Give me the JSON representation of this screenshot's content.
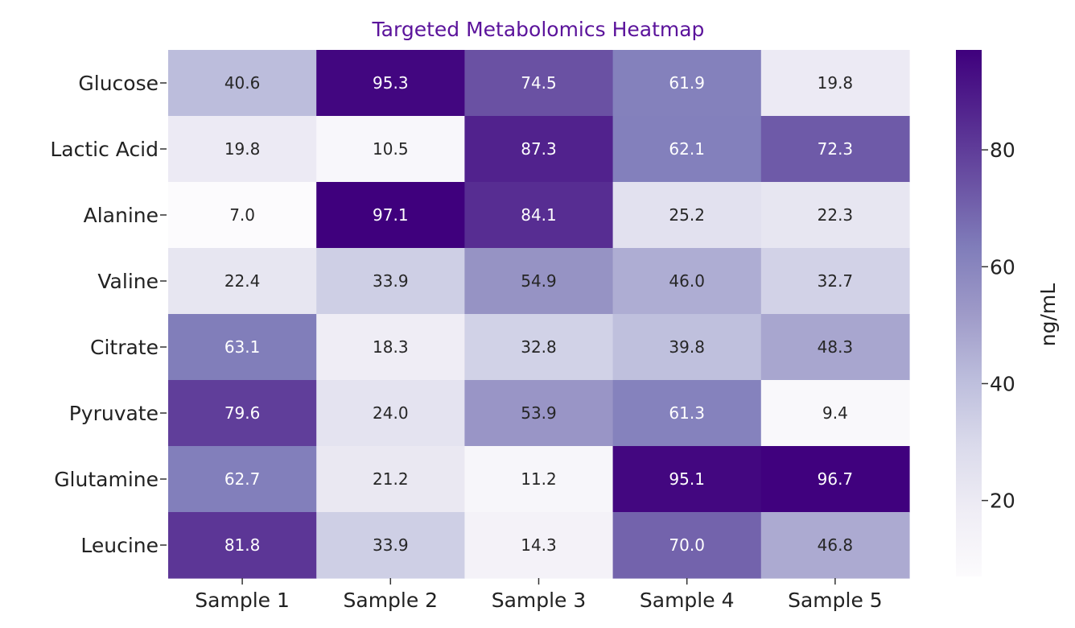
{
  "chart_data": {
    "type": "heatmap",
    "title": "Targeted Metabolomics Heatmap",
    "title_color": "#5b139b",
    "columns": [
      "Sample 1",
      "Sample 2",
      "Sample 3",
      "Sample 4",
      "Sample 5"
    ],
    "rows": [
      "Glucose",
      "Lactic Acid",
      "Alanine",
      "Valine",
      "Citrate",
      "Pyruvate",
      "Glutamine",
      "Leucine"
    ],
    "values": [
      [
        40.6,
        95.3,
        74.5,
        61.9,
        19.8
      ],
      [
        19.8,
        10.5,
        87.3,
        62.1,
        72.3
      ],
      [
        7.0,
        97.1,
        84.1,
        25.2,
        22.3
      ],
      [
        22.4,
        33.9,
        54.9,
        46.0,
        32.7
      ],
      [
        63.1,
        18.3,
        32.8,
        39.8,
        48.3
      ],
      [
        79.6,
        24.0,
        53.9,
        61.3,
        9.4
      ],
      [
        62.7,
        21.2,
        11.2,
        95.1,
        96.7
      ],
      [
        81.8,
        33.9,
        14.3,
        70.0,
        46.8
      ]
    ],
    "colormap": "Purples",
    "colormap_colors": [
      "#fcfbfd",
      "#efedf5",
      "#dadaeb",
      "#bcbddc",
      "#9e9ac8",
      "#807dba",
      "#6a51a3",
      "#54278f",
      "#3f007d"
    ],
    "value_range": [
      7.0,
      97.1
    ],
    "colorbar": {
      "label": "ng/mL",
      "ticks": [
        "20",
        "40",
        "60",
        "80"
      ]
    }
  }
}
